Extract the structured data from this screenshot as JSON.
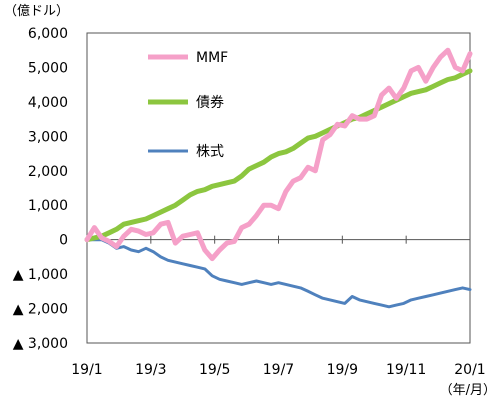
{
  "chart_data": {
    "type": "line",
    "y_unit_label": "（億ドル）",
    "x_unit_label": "（年/月）",
    "ylim": [
      -3000,
      6000
    ],
    "y_ticks": [
      6000,
      5000,
      4000,
      3000,
      2000,
      1000,
      0,
      -1000,
      -2000,
      -3000
    ],
    "y_tick_labels": [
      "6,000",
      "5,000",
      "4,000",
      "3,000",
      "2,000",
      "1,000",
      "0",
      "▲ 1,000",
      "▲ 2,000",
      "▲ 3,000"
    ],
    "x_tick_labels": [
      "19/1",
      "19/3",
      "19/5",
      "19/7",
      "19/9",
      "19/11",
      "20/1"
    ],
    "legend_placement": "upper-left inside plot",
    "grid": false,
    "x": [
      0,
      1,
      2,
      3,
      4,
      5,
      6,
      7,
      8,
      9,
      10,
      11,
      12,
      13,
      14,
      15,
      16,
      17,
      18,
      19,
      20,
      21,
      22,
      23,
      24,
      25,
      26,
      27,
      28,
      29,
      30,
      31,
      32,
      33,
      34,
      35,
      36,
      37,
      38,
      39,
      40,
      41,
      42,
      43,
      44,
      45,
      46,
      47,
      48,
      49,
      50,
      51,
      52
    ],
    "series": [
      {
        "name": "MMF",
        "color": "#f5a0c8",
        "values": [
          0,
          350,
          50,
          -50,
          -200,
          100,
          300,
          250,
          150,
          200,
          450,
          500,
          -100,
          100,
          150,
          200,
          -300,
          -550,
          -300,
          -100,
          -50,
          350,
          450,
          700,
          1000,
          1000,
          900,
          1400,
          1700,
          1800,
          2100,
          2000,
          2900,
          3050,
          3350,
          3300,
          3600,
          3500,
          3500,
          3600,
          4200,
          4400,
          4100,
          4400,
          4900,
          5000,
          4600,
          5000,
          5300,
          5500,
          5000,
          4900,
          5400
        ]
      },
      {
        "name": "債券",
        "color": "#8cc63f",
        "values": [
          0,
          50,
          100,
          200,
          300,
          450,
          500,
          550,
          600,
          700,
          800,
          900,
          1000,
          1150,
          1300,
          1400,
          1450,
          1550,
          1600,
          1650,
          1700,
          1850,
          2050,
          2150,
          2250,
          2400,
          2500,
          2550,
          2650,
          2800,
          2950,
          3000,
          3100,
          3200,
          3300,
          3400,
          3500,
          3550,
          3650,
          3750,
          3850,
          3950,
          4050,
          4150,
          4250,
          4300,
          4350,
          4450,
          4550,
          4650,
          4700,
          4800,
          4900
        ]
      },
      {
        "name": "株式",
        "color": "#4f81bd",
        "values": [
          0,
          0,
          0,
          -100,
          -250,
          -200,
          -300,
          -350,
          -250,
          -350,
          -500,
          -600,
          -650,
          -700,
          -750,
          -800,
          -850,
          -1050,
          -1150,
          -1200,
          -1250,
          -1300,
          -1250,
          -1200,
          -1250,
          -1300,
          -1250,
          -1300,
          -1350,
          -1400,
          -1500,
          -1600,
          -1700,
          -1750,
          -1800,
          -1850,
          -1650,
          -1750,
          -1800,
          -1850,
          -1900,
          -1950,
          -1900,
          -1850,
          -1750,
          -1700,
          -1650,
          -1600,
          -1550,
          -1500,
          -1450,
          -1400,
          -1450
        ]
      }
    ]
  }
}
